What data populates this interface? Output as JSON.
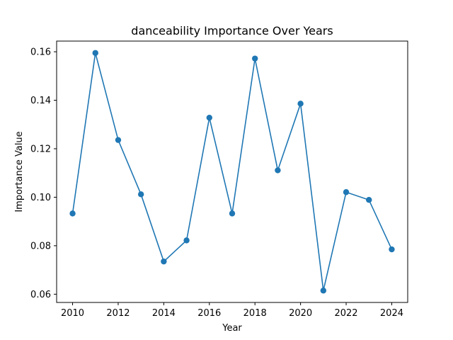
{
  "chart_data": {
    "type": "line",
    "title": "danceability Importance Over Years",
    "xlabel": "Year",
    "ylabel": "Importance Value",
    "x": [
      2010,
      2011,
      2012,
      2013,
      2014,
      2015,
      2016,
      2017,
      2018,
      2019,
      2020,
      2021,
      2022,
      2023,
      2024
    ],
    "series": [
      {
        "values": [
          0.0933,
          0.1595,
          0.1236,
          0.1012,
          0.0735,
          0.0822,
          0.1328,
          0.0933,
          0.1572,
          0.1111,
          0.1386,
          0.0615,
          0.1021,
          0.0989,
          0.0785
        ],
        "color": "#1f77b4",
        "marker": "circle"
      }
    ],
    "xlim": [
      2009.3,
      2024.7
    ],
    "ylim": [
      0.0566,
      0.1644
    ],
    "xticks": [
      2010,
      2012,
      2014,
      2016,
      2018,
      2020,
      2022,
      2024
    ],
    "yticks": [
      0.06,
      0.08,
      0.1,
      0.12,
      0.14,
      0.16
    ],
    "ytick_labels": [
      "0.06",
      "0.08",
      "0.10",
      "0.12",
      "0.14",
      "0.16"
    ],
    "grid": false
  }
}
